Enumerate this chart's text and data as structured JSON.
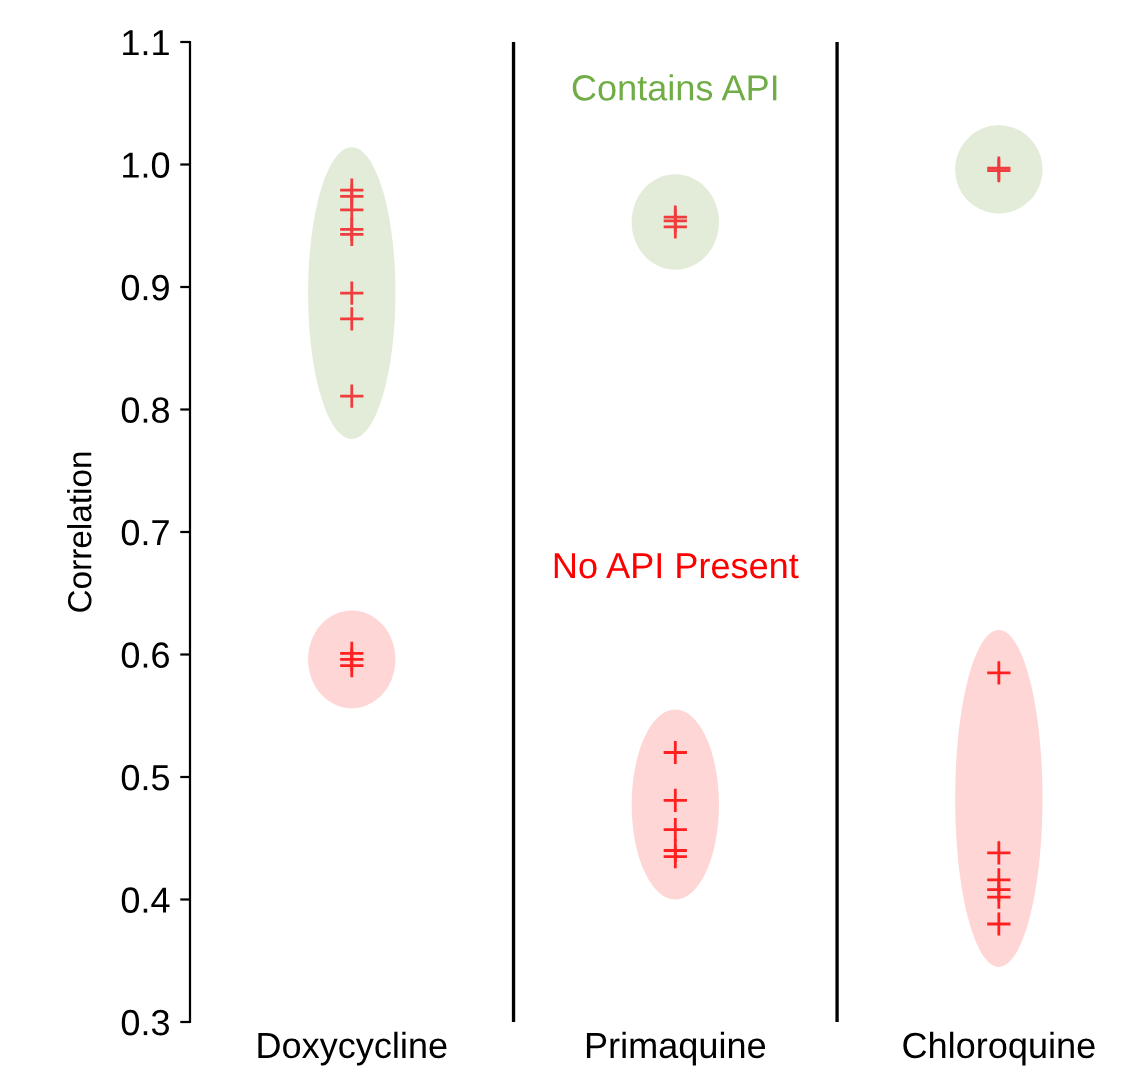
{
  "chart_data": {
    "type": "scatter",
    "ylabel": "Correlation",
    "categories": [
      "Doxycycline",
      "Primaquine",
      "Chloroquine"
    ],
    "series": [
      {
        "color": "#f03c3c",
        "x": [
          "Doxycycline",
          "Doxycycline",
          "Doxycycline",
          "Doxycycline",
          "Doxycycline",
          "Doxycycline",
          "Doxycycline",
          "Doxycycline",
          "Primaquine",
          "Primaquine",
          "Primaquine",
          "Chloroquine",
          "Chloroquine"
        ],
        "values": [
          0.979,
          0.974,
          0.963,
          0.947,
          0.943,
          0.895,
          0.874,
          0.811,
          0.957,
          0.954,
          0.949,
          0.997,
          0.995
        ]
      },
      {
        "color": "#ff2020",
        "x": [
          "Doxycycline",
          "Doxycycline",
          "Doxycycline",
          "Primaquine",
          "Primaquine",
          "Primaquine",
          "Primaquine",
          "Primaquine",
          "Chloroquine",
          "Chloroquine",
          "Chloroquine",
          "Chloroquine",
          "Chloroquine",
          "Chloroquine"
        ],
        "values": [
          0.601,
          0.596,
          0.591,
          0.52,
          0.481,
          0.457,
          0.44,
          0.435,
          0.585,
          0.438,
          0.416,
          0.408,
          0.402,
          0.38
        ]
      }
    ],
    "annotations": [
      "Contains API",
      "No API Present"
    ],
    "ylim": [
      0.3,
      1.1
    ],
    "yticks": [
      0.3,
      0.4,
      0.5,
      0.6,
      0.7,
      0.8,
      0.9,
      {
        "value": 1.0,
        "label": "1.0"
      },
      1.1
    ],
    "marker": "cross",
    "grid": false
  }
}
